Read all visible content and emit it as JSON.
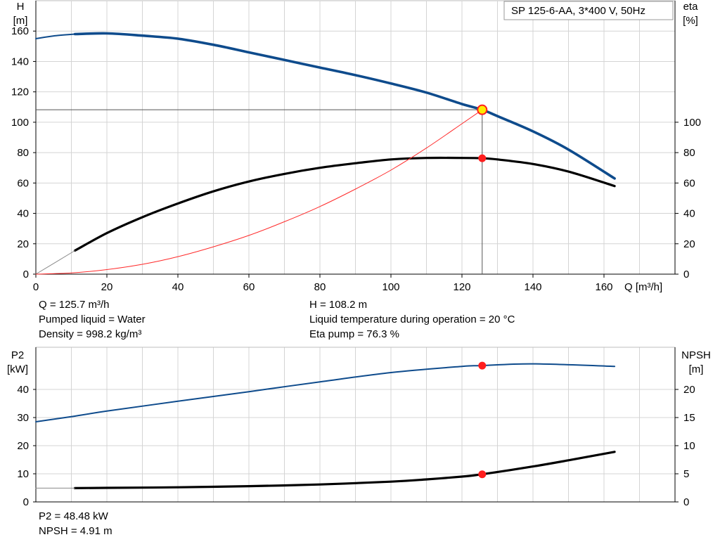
{
  "pump_label": "SP 125-6-AA, 3*400 V, 50Hz",
  "colors": {
    "head": "#0e4b8c",
    "eta": "#000000",
    "system": "#ff2a2a",
    "op_fill": "#ffea00",
    "op_red": "#ff1e1e",
    "p2": "#0e4b8c",
    "npsh": "#000000"
  },
  "top_chart": {
    "y_left_unit": "H\n[m]",
    "y_right_unit": "eta\n[%]",
    "x_unit": "Q [m³/h]",
    "info": [
      "Q = 125.7 m³/h",
      "Pumped liquid = Water",
      "Density = 998.2 kg/m³",
      "H = 108.2 m",
      "Liquid temperature during operation = 20 °C",
      "Eta pump = 76.3 %"
    ]
  },
  "bottom_chart": {
    "y_left_unit": "P2\n[kW]",
    "y_right_unit": "NPSH\n[m]",
    "info": [
      "P2 = 48.48 kW",
      "NPSH = 4.91 m"
    ]
  },
  "chart_data": [
    {
      "type": "line",
      "title": "SP 125-6-AA, 3*400 V, 50Hz",
      "xlabel": "Q [m³/h]",
      "ylabel": "H [m]",
      "y2label": "eta [%]",
      "xlim": [
        0,
        180
      ],
      "ylim": [
        0,
        180
      ],
      "y2lim": [
        0,
        180
      ],
      "x_ticks": [
        0,
        20,
        40,
        60,
        80,
        100,
        120,
        140,
        160
      ],
      "y_ticks": [
        0,
        20,
        40,
        60,
        80,
        100,
        120,
        140,
        160
      ],
      "y2_ticks": [
        0,
        20,
        40,
        60,
        80,
        100
      ],
      "grid": true,
      "series": [
        {
          "name": "H",
          "axis": "left",
          "style": "thick-blue",
          "x": [
            11,
            20,
            30,
            40,
            50,
            60,
            70,
            80,
            90,
            100,
            110,
            120,
            125.7,
            130,
            140,
            150,
            163
          ],
          "y": [
            158,
            158.5,
            157,
            155,
            151,
            146,
            141,
            136,
            131,
            125.5,
            119.5,
            112,
            108.2,
            104,
            94,
            82,
            63
          ]
        },
        {
          "name": "H_ext",
          "axis": "left",
          "style": "thin-blue",
          "x": [
            0,
            5,
            11
          ],
          "y": [
            155,
            156.8,
            158
          ]
        },
        {
          "name": "eta",
          "axis": "right",
          "style": "thick-black",
          "x": [
            11,
            20,
            30,
            40,
            50,
            60,
            70,
            80,
            90,
            100,
            110,
            120,
            125.7,
            130,
            140,
            150,
            163
          ],
          "y": [
            15.5,
            27,
            37.5,
            46.5,
            54.5,
            61,
            66,
            70,
            73,
            75.5,
            76.5,
            76.5,
            76.3,
            75.5,
            72.5,
            67.5,
            58
          ]
        },
        {
          "name": "eta_ext",
          "axis": "right",
          "style": "thin-gray",
          "x": [
            0,
            11
          ],
          "y": [
            0,
            15.5
          ]
        },
        {
          "name": "system",
          "axis": "left",
          "style": "thin-red",
          "x": [
            0,
            10,
            20,
            30,
            40,
            50,
            60,
            70,
            80,
            90,
            100,
            110,
            120,
            125.7
          ],
          "y": [
            0,
            0.8,
            3,
            6.5,
            11.5,
            18,
            25.5,
            34.5,
            44.5,
            56,
            68.5,
            83,
            99,
            108.2
          ]
        }
      ],
      "operating_point": {
        "q": 125.7,
        "h": 108.2,
        "eta": 76.3
      }
    },
    {
      "type": "line",
      "ylabel": "P2 [kW]",
      "y2label": "NPSH [m]",
      "xlim": [
        0,
        180
      ],
      "ylim": [
        0,
        55
      ],
      "y2lim": [
        0,
        27.5
      ],
      "y_ticks": [
        0,
        10,
        20,
        30,
        40
      ],
      "y2_ticks": [
        0,
        5,
        10,
        15,
        20
      ],
      "grid": true,
      "series": [
        {
          "name": "P2",
          "axis": "left",
          "style": "thin-blue",
          "x": [
            11,
            20,
            40,
            60,
            80,
            100,
            120,
            125.7,
            140,
            163
          ],
          "y": [
            30.5,
            32.3,
            35.8,
            39.2,
            42.7,
            46,
            48.2,
            48.48,
            49.1,
            48.2
          ]
        },
        {
          "name": "P2_ext",
          "axis": "left",
          "style": "thin-blue",
          "x": [
            0,
            11
          ],
          "y": [
            28.5,
            30.5
          ]
        },
        {
          "name": "NPSH",
          "axis": "right",
          "style": "thick-black",
          "x": [
            11,
            20,
            40,
            60,
            80,
            100,
            110,
            120,
            125.7,
            140,
            150,
            163
          ],
          "y": [
            2.45,
            2.5,
            2.6,
            2.8,
            3.1,
            3.6,
            4.0,
            4.5,
            4.91,
            6.3,
            7.4,
            8.9
          ]
        },
        {
          "name": "NPSH_ext",
          "axis": "right",
          "style": "thin-gray",
          "x": [
            0,
            11
          ],
          "y": [
            2.45,
            2.45
          ]
        }
      ],
      "operating_point": {
        "q": 125.7,
        "p2": 48.48,
        "npsh": 4.91
      }
    }
  ]
}
